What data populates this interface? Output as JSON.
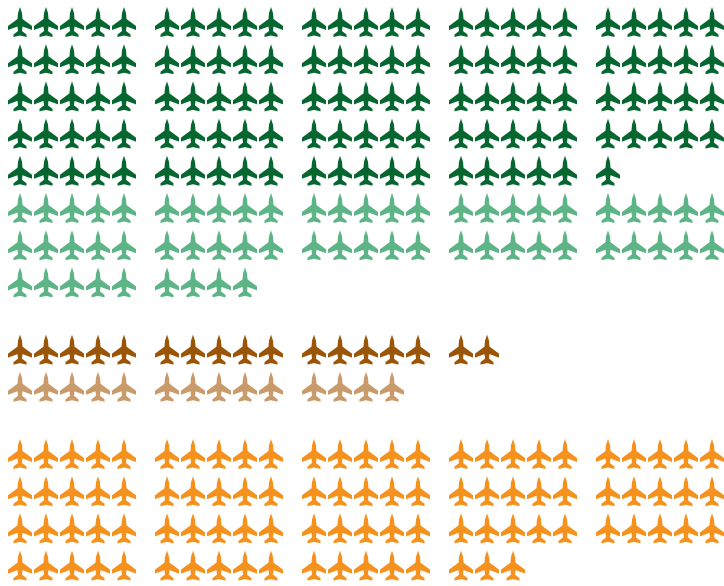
{
  "chart_data": {
    "type": "pictogram",
    "groups": [
      {
        "series": [
          {
            "color": "#05672f",
            "value": 121
          },
          {
            "color": "#5db487",
            "value": 59
          }
        ]
      },
      {
        "series": [
          {
            "color": "#9a5606",
            "value": 17
          },
          {
            "color": "#c99a6a",
            "value": 14
          }
        ]
      },
      {
        "series": [
          {
            "color": "#f5921e",
            "value": 93
          }
        ]
      }
    ]
  }
}
